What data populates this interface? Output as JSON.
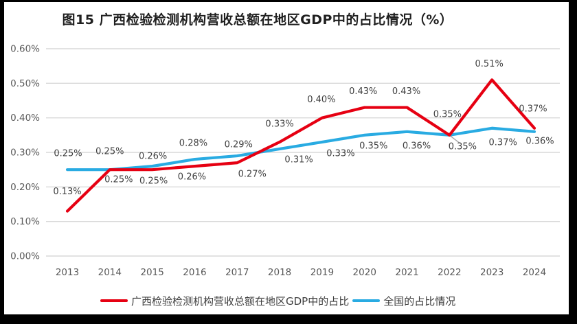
{
  "window": {
    "frame_color": "#000000",
    "panel_color": "#ffffff"
  },
  "chart": {
    "title": "图15 广西检验检测机构营收总额在地区GDP中的占比情况（%）",
    "legend": [
      "广西检验检测机构营收总额在地区GDP中的占比",
      "全国的占比情况"
    ]
  },
  "chart_data": {
    "type": "line",
    "title": "图15 广西检验检测机构营收总额在地区GDP中的占比情况（%）",
    "categories": [
      "2013",
      "2014",
      "2015",
      "2016",
      "2017",
      "2018",
      "2019",
      "2020",
      "2021",
      "2022",
      "2023",
      "2024"
    ],
    "series": [
      {
        "name": "广西检验检测机构营收总额在地区GDP中的占比",
        "color": "#e60012",
        "values": [
          0.13,
          0.25,
          0.25,
          0.26,
          0.27,
          0.33,
          0.4,
          0.43,
          0.43,
          0.35,
          0.51,
          0.37
        ],
        "labels": [
          "0.13%",
          "0.25%",
          "0.25%",
          "0.26%",
          "0.27%",
          "0.33%",
          "0.40%",
          "0.43%",
          "0.43%",
          "0.35%",
          "0.51%",
          "0.37%"
        ],
        "label_offsets": [
          [
            0,
            -29
          ],
          [
            13,
            14
          ],
          [
            2,
            16
          ],
          [
            -4,
            15
          ],
          [
            22,
            16
          ],
          [
            0,
            -27
          ],
          [
            -1,
            -27
          ],
          [
            -2,
            -24
          ],
          [
            -1,
            -24
          ],
          [
            -3,
            -31
          ],
          [
            -4,
            -24
          ],
          [
            -2,
            -29
          ]
        ]
      },
      {
        "name": "全国的占比情况",
        "color": "#29abe2",
        "values": [
          0.25,
          0.25,
          0.26,
          0.28,
          0.29,
          0.31,
          0.33,
          0.35,
          0.36,
          0.35,
          0.37,
          0.36
        ],
        "labels": [
          "0.25%",
          "0.25%",
          "0.26%",
          "0.28%",
          "0.29%",
          "0.31%",
          "0.33%",
          "0.35%",
          "0.36%",
          "0.35%",
          "0.37%",
          "0.36%"
        ],
        "label_offsets": [
          [
            1,
            -24
          ],
          [
            0,
            -27
          ],
          [
            1,
            -15
          ],
          [
            -2,
            -24
          ],
          [
            2,
            -17
          ],
          [
            28,
            15
          ],
          [
            27,
            16
          ],
          [
            13,
            15
          ],
          [
            14,
            20
          ],
          [
            19,
            16
          ],
          [
            16,
            20
          ],
          [
            8,
            13
          ]
        ]
      }
    ],
    "xlabel": "",
    "ylabel": "",
    "ylim": [
      0,
      0.6
    ],
    "yticks": {
      "values": [
        0,
        0.1,
        0.2,
        0.3,
        0.4,
        0.5,
        0.6
      ],
      "labels": [
        "0.00%",
        "0.10%",
        "0.20%",
        "0.30%",
        "0.40%",
        "0.50%",
        "0.60%"
      ]
    },
    "grid": true,
    "legend_position": "bottom",
    "annotations": {
      "leader_line": {
        "category": "2022",
        "series": "全国的占比情况",
        "note": "gray callout from 2022 point to its 0.35% label"
      }
    },
    "colors": {
      "grid": "#d9d9d9",
      "axis_text": "#595959",
      "data_label_text": "#3f3f3f",
      "leader": "#a6a6a6",
      "title_text": "#1f1f1f"
    }
  }
}
